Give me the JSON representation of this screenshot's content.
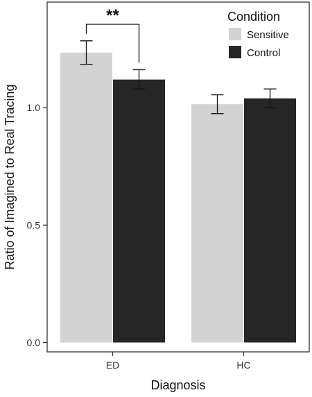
{
  "chart_data": {
    "type": "bar",
    "xlabel": "Diagnosis",
    "ylabel": "Ratio of Imagined to Real Tracing",
    "categories": [
      "ED",
      "HC"
    ],
    "series": [
      {
        "name": "Sensitive",
        "color": "#d3d3d3",
        "values": [
          1.235,
          1.015
        ],
        "error": [
          [
            1.185,
            1.285
          ],
          [
            0.975,
            1.055
          ]
        ]
      },
      {
        "name": "Control",
        "color": "#262626",
        "values": [
          1.12,
          1.04
        ],
        "error": [
          [
            1.08,
            1.162
          ],
          [
            1.0,
            1.08
          ]
        ]
      }
    ],
    "ylim": [
      -0.04,
      1.45
    ],
    "yticks": [
      0.0,
      0.5,
      1.0
    ],
    "yticklabels": [
      "0.0",
      "0.5",
      "1.0"
    ],
    "legend": {
      "title": "Condition",
      "position": "top-right"
    },
    "annotations": [
      {
        "text": "**",
        "between": [
          "ED Sensitive",
          "ED Control"
        ]
      }
    ],
    "grid": false
  }
}
